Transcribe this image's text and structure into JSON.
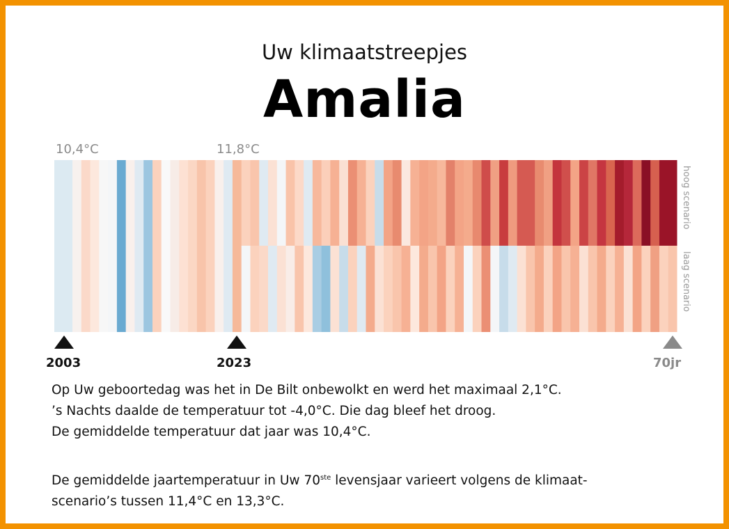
{
  "header": {
    "title": "Uw klimaatstreepjes",
    "name": "Amalia"
  },
  "stripes": {
    "start_label": "10,4°C",
    "now_label": "11,8°C",
    "high_label": "hoog scenario",
    "low_label": "laag scenario",
    "past": [
      "#dceaf2",
      "#dceaf2",
      "#f7f1ee",
      "#fbd9c9",
      "#fde8dd",
      "#f7f7f7",
      "#f4f6f8",
      "#6aaad1",
      "#f9f0ec",
      "#dfeaf2",
      "#9cc6e0",
      "#fbd2bd",
      "#f9f9f9",
      "#f7ece7",
      "#fde1d3",
      "#fbd7c4",
      "#f8c4aa",
      "#fbd2bd",
      "#f9f0ec",
      "#dfeaf2",
      "#f6b99a"
    ],
    "high": [
      "#fbd2bd",
      "#f9c5ac",
      "#dfeaf2",
      "#fbe1d4",
      "#f4f6f8",
      "#f9c3a9",
      "#fcd9c8",
      "#dfeaf2",
      "#f7b89c",
      "#fbcfba",
      "#f6b194",
      "#fae0d3",
      "#eb8f74",
      "#f6b194",
      "#fbd2bd",
      "#c7dcea",
      "#f3a486",
      "#e88b6f",
      "#fbe8df",
      "#f6b194",
      "#f3a486",
      "#f4ab8c",
      "#f7b89c",
      "#e3816a",
      "#f3a486",
      "#f4ab8c",
      "#e8896e",
      "#cf4c4a",
      "#f0a083",
      "#c83c3e",
      "#ef9b7f",
      "#d55a52",
      "#d55a52",
      "#e88b6f",
      "#f0a083",
      "#c4343d",
      "#d04f4c",
      "#f3a486",
      "#cb4345",
      "#e07765",
      "#c53540",
      "#d9654f",
      "#a41c2c",
      "#b5273a",
      "#dc6a5b",
      "#8a0f25",
      "#d6604f",
      "#9a1428",
      "#9a1428"
    ],
    "low": [
      "#f4f6f8",
      "#fbd2bd",
      "#fbd9c8",
      "#dfeaf2",
      "#fbe1d4",
      "#f9ede8",
      "#f9c5ac",
      "#fde8dd",
      "#a9cde3",
      "#8fc0dc",
      "#fbe1d4",
      "#c7dcea",
      "#fbd2bd",
      "#dfeaf2",
      "#f4ab8c",
      "#fbe1d4",
      "#fbd2bd",
      "#f9c5ac",
      "#f6b194",
      "#fde8dd",
      "#f4ab8c",
      "#f9c5ac",
      "#f3a486",
      "#fbd2bd",
      "#f6b194",
      "#f4f6f8",
      "#fbd2bd",
      "#eb8f74",
      "#f4f6f8",
      "#c7dcea",
      "#dfeaf2",
      "#fbe1d4",
      "#f9c5ac",
      "#f4ab8c",
      "#fbd2bd",
      "#f3a486",
      "#f9c5ac",
      "#f6b194",
      "#fbe1d4",
      "#f9c5ac",
      "#f4ab8c",
      "#fbd2bd",
      "#f6b194",
      "#fbe1d4",
      "#f3a486",
      "#fbd2bd",
      "#f0a083",
      "#fbd2bd",
      "#f9c5ac"
    ]
  },
  "markers": {
    "birth": "2003",
    "now": "2023",
    "end": "70jr"
  },
  "text": {
    "line1": "Op Uw geboortedag was het in De Bilt onbewolkt en werd het maximaal 2,1°C.",
    "line2": "’s Nachts daalde de temperatuur tot -4,0°C. Die dag bleef het droog.",
    "line3": "De gemiddelde temperatuur dat jaar was 10,4°C.",
    "line4a": "De gemiddelde jaartemperatuur in Uw 70",
    "line4sup": "ste",
    "line4b": " levensjaar varieert volgens de klimaat-",
    "line5": "scenario’s tussen 11,4°C en 13,3°C."
  }
}
